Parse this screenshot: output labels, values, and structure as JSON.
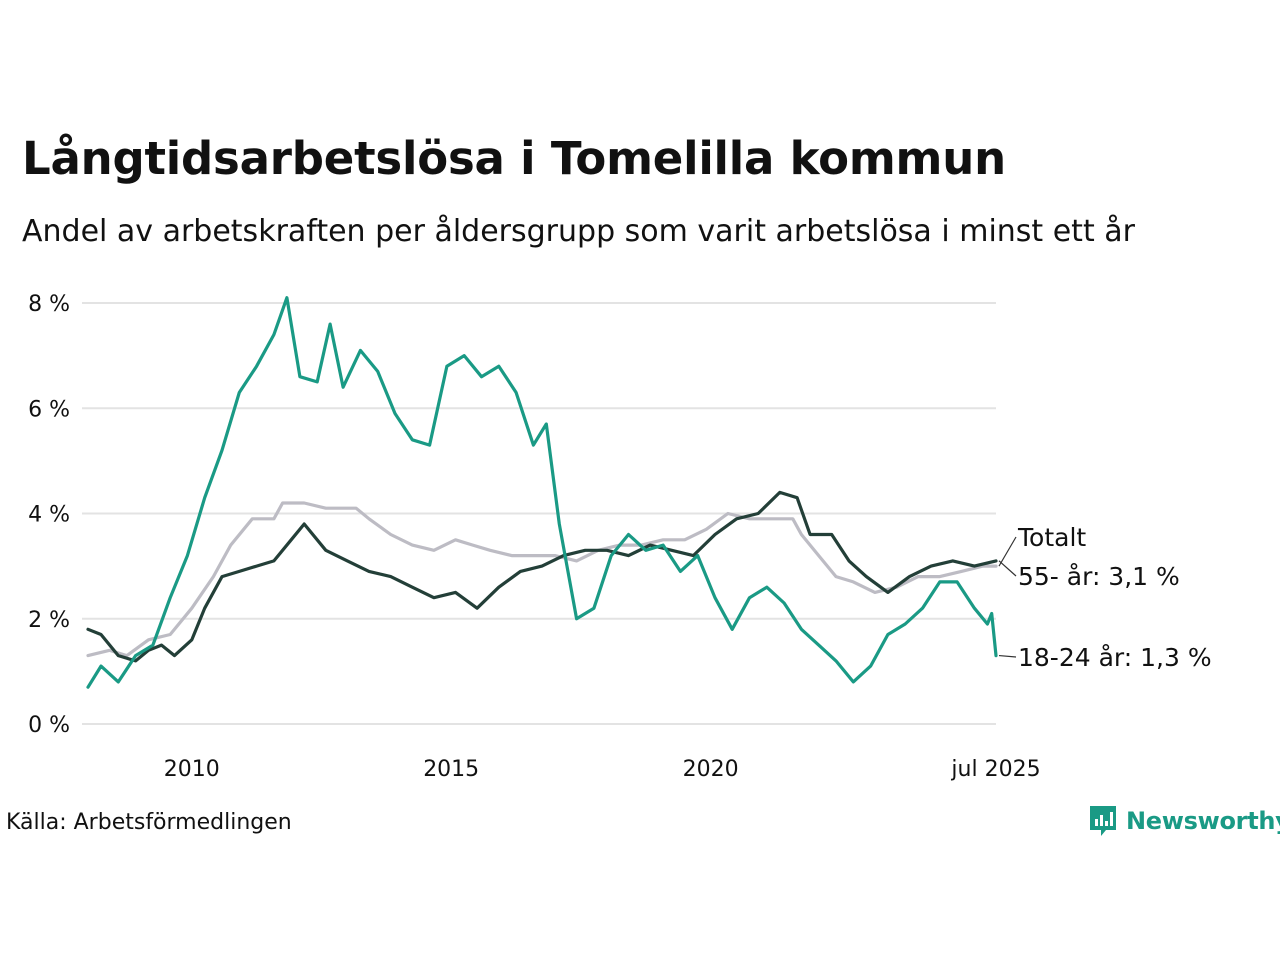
{
  "title": "Långtidsarbetslösa i Tomelilla kommun",
  "subtitle": "Andel av arbetskraften per åldersgrupp som varit arbetslösa i minst ett år",
  "source": "Källa: Arbetsförmedlingen",
  "brand": "Newsworthy",
  "chart_data": {
    "type": "line",
    "title": "Långtidsarbetslösa i Tomelilla kommun",
    "subtitle": "Andel av arbetskraften per åldersgrupp som varit arbetslösa i minst ett år",
    "x_range": [
      "2008-01",
      "2025-07"
    ],
    "ylim": [
      0,
      8
    ],
    "y_ticks": [
      0,
      2,
      4,
      6,
      8
    ],
    "y_tick_labels": [
      "0 %",
      "2 %",
      "4 %",
      "6 %",
      "8 %"
    ],
    "x_ticks": [
      {
        "label": "2010",
        "date": "2010-01"
      },
      {
        "label": "2015",
        "date": "2015-01"
      },
      {
        "label": "2020",
        "date": "2020-01"
      },
      {
        "label": "jul 2025",
        "date": "2025-07"
      }
    ],
    "grid": "horizontal",
    "legend": "direct labels at right end of lines",
    "series": [
      {
        "name": "Totalt",
        "end_label": "Totalt",
        "color": "#bdbcc4",
        "points": [
          [
            "2008-01",
            1.3
          ],
          [
            "2008-06",
            1.4
          ],
          [
            "2008-10",
            1.3
          ],
          [
            "2009-03",
            1.6
          ],
          [
            "2009-08",
            1.7
          ],
          [
            "2010-01",
            2.2
          ],
          [
            "2010-06",
            2.8
          ],
          [
            "2010-10",
            3.4
          ],
          [
            "2011-03",
            3.9
          ],
          [
            "2011-08",
            3.9
          ],
          [
            "2011-10",
            4.2
          ],
          [
            "2012-03",
            4.2
          ],
          [
            "2012-08",
            4.1
          ],
          [
            "2013-03",
            4.1
          ],
          [
            "2013-06",
            3.9
          ],
          [
            "2013-11",
            3.6
          ],
          [
            "2014-04",
            3.4
          ],
          [
            "2014-09",
            3.3
          ],
          [
            "2015-02",
            3.5
          ],
          [
            "2015-06",
            3.4
          ],
          [
            "2015-10",
            3.3
          ],
          [
            "2016-03",
            3.2
          ],
          [
            "2016-08",
            3.2
          ],
          [
            "2017-01",
            3.2
          ],
          [
            "2017-06",
            3.1
          ],
          [
            "2017-11",
            3.3
          ],
          [
            "2018-04",
            3.4
          ],
          [
            "2018-09",
            3.4
          ],
          [
            "2019-02",
            3.5
          ],
          [
            "2019-07",
            3.5
          ],
          [
            "2019-12",
            3.7
          ],
          [
            "2020-05",
            4.0
          ],
          [
            "2020-10",
            3.9
          ],
          [
            "2021-03",
            3.9
          ],
          [
            "2021-08",
            3.9
          ],
          [
            "2021-10",
            3.6
          ],
          [
            "2022-02",
            3.2
          ],
          [
            "2022-06",
            2.8
          ],
          [
            "2022-10",
            2.7
          ],
          [
            "2023-03",
            2.5
          ],
          [
            "2023-08",
            2.6
          ],
          [
            "2024-01",
            2.8
          ],
          [
            "2024-06",
            2.8
          ],
          [
            "2024-11",
            2.9
          ],
          [
            "2025-04",
            3.0
          ],
          [
            "2025-07",
            3.0
          ]
        ]
      },
      {
        "name": "55- år",
        "end_label": "55- år: 3,1 %",
        "color": "#233f38",
        "points": [
          [
            "2008-01",
            1.8
          ],
          [
            "2008-04",
            1.7
          ],
          [
            "2008-08",
            1.3
          ],
          [
            "2008-12",
            1.2
          ],
          [
            "2009-03",
            1.4
          ],
          [
            "2009-06",
            1.5
          ],
          [
            "2009-09",
            1.3
          ],
          [
            "2010-01",
            1.6
          ],
          [
            "2010-04",
            2.2
          ],
          [
            "2010-08",
            2.8
          ],
          [
            "2010-12",
            2.9
          ],
          [
            "2011-04",
            3.0
          ],
          [
            "2011-08",
            3.1
          ],
          [
            "2011-12",
            3.5
          ],
          [
            "2012-03",
            3.8
          ],
          [
            "2012-08",
            3.3
          ],
          [
            "2013-01",
            3.1
          ],
          [
            "2013-06",
            2.9
          ],
          [
            "2013-11",
            2.8
          ],
          [
            "2014-04",
            2.6
          ],
          [
            "2014-09",
            2.4
          ],
          [
            "2015-02",
            2.5
          ],
          [
            "2015-07",
            2.2
          ],
          [
            "2015-12",
            2.6
          ],
          [
            "2016-05",
            2.9
          ],
          [
            "2016-10",
            3.0
          ],
          [
            "2017-03",
            3.2
          ],
          [
            "2017-08",
            3.3
          ],
          [
            "2018-01",
            3.3
          ],
          [
            "2018-06",
            3.2
          ],
          [
            "2018-11",
            3.4
          ],
          [
            "2019-04",
            3.3
          ],
          [
            "2019-09",
            3.2
          ],
          [
            "2020-02",
            3.6
          ],
          [
            "2020-07",
            3.9
          ],
          [
            "2020-12",
            4.0
          ],
          [
            "2021-05",
            4.4
          ],
          [
            "2021-09",
            4.3
          ],
          [
            "2021-12",
            3.6
          ],
          [
            "2022-05",
            3.6
          ],
          [
            "2022-09",
            3.1
          ],
          [
            "2023-01",
            2.8
          ],
          [
            "2023-06",
            2.5
          ],
          [
            "2023-11",
            2.8
          ],
          [
            "2024-04",
            3.0
          ],
          [
            "2024-09",
            3.1
          ],
          [
            "2025-02",
            3.0
          ],
          [
            "2025-07",
            3.1
          ]
        ]
      },
      {
        "name": "18-24 år",
        "end_label": "18-24 år: 1,3 %",
        "color": "#1a9a85",
        "points": [
          [
            "2008-01",
            0.7
          ],
          [
            "2008-04",
            1.1
          ],
          [
            "2008-08",
            0.8
          ],
          [
            "2008-12",
            1.3
          ],
          [
            "2009-04",
            1.5
          ],
          [
            "2009-08",
            2.4
          ],
          [
            "2009-12",
            3.2
          ],
          [
            "2010-04",
            4.3
          ],
          [
            "2010-08",
            5.2
          ],
          [
            "2010-12",
            6.3
          ],
          [
            "2011-04",
            6.8
          ],
          [
            "2011-08",
            7.4
          ],
          [
            "2011-11",
            8.1
          ],
          [
            "2012-02",
            6.6
          ],
          [
            "2012-06",
            6.5
          ],
          [
            "2012-09",
            7.6
          ],
          [
            "2012-12",
            6.4
          ],
          [
            "2013-04",
            7.1
          ],
          [
            "2013-08",
            6.7
          ],
          [
            "2013-12",
            5.9
          ],
          [
            "2014-04",
            5.4
          ],
          [
            "2014-08",
            5.3
          ],
          [
            "2014-12",
            6.8
          ],
          [
            "2015-04",
            7.0
          ],
          [
            "2015-08",
            6.6
          ],
          [
            "2015-12",
            6.8
          ],
          [
            "2016-04",
            6.3
          ],
          [
            "2016-08",
            5.3
          ],
          [
            "2016-11",
            5.7
          ],
          [
            "2017-02",
            3.8
          ],
          [
            "2017-06",
            2.0
          ],
          [
            "2017-10",
            2.2
          ],
          [
            "2018-02",
            3.2
          ],
          [
            "2018-06",
            3.6
          ],
          [
            "2018-10",
            3.3
          ],
          [
            "2019-02",
            3.4
          ],
          [
            "2019-06",
            2.9
          ],
          [
            "2019-10",
            3.2
          ],
          [
            "2020-02",
            2.4
          ],
          [
            "2020-06",
            1.8
          ],
          [
            "2020-10",
            2.4
          ],
          [
            "2021-02",
            2.6
          ],
          [
            "2021-06",
            2.3
          ],
          [
            "2021-10",
            1.8
          ],
          [
            "2022-02",
            1.5
          ],
          [
            "2022-06",
            1.2
          ],
          [
            "2022-10",
            0.8
          ],
          [
            "2023-02",
            1.1
          ],
          [
            "2023-06",
            1.7
          ],
          [
            "2023-10",
            1.9
          ],
          [
            "2024-02",
            2.2
          ],
          [
            "2024-06",
            2.7
          ],
          [
            "2024-10",
            2.7
          ],
          [
            "2025-02",
            2.2
          ],
          [
            "2025-05",
            1.9
          ],
          [
            "2025-06",
            2.1
          ],
          [
            "2025-07",
            1.3
          ]
        ]
      }
    ]
  }
}
